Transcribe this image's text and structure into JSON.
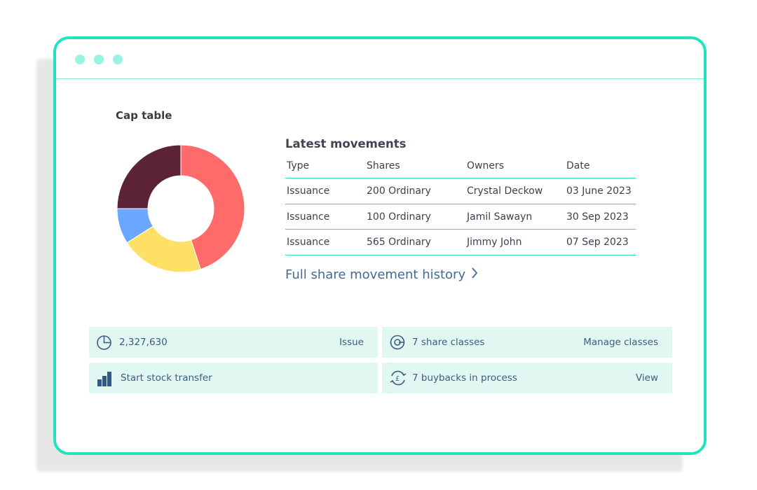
{
  "window": {
    "dots": [
      "",
      "",
      ""
    ]
  },
  "cap_table": {
    "title": "Cap table",
    "chart_data": {
      "type": "pie",
      "categories": [
        "Red segment",
        "Yellow segment",
        "Blue segment",
        "Dark segment"
      ],
      "values": [
        45,
        21,
        9,
        25
      ],
      "colors": [
        "#ff6b6b",
        "#ffe066",
        "#6aa8ff",
        "#5c2235"
      ],
      "title": "Cap table"
    }
  },
  "movements": {
    "title": "Latest movements",
    "columns": [
      "Type",
      "Shares",
      "Owners",
      "Date"
    ],
    "rows": [
      [
        "Issuance",
        "200 Ordinary",
        "Crystal Deckow",
        "03 June 2023"
      ],
      [
        "Issuance",
        "100 Ordinary",
        "Jamil Sawayn",
        "30 Sep 2023"
      ],
      [
        "Issuance",
        "565 Ordinary",
        "Jimmy John",
        "07 Sep 2023"
      ]
    ],
    "history_link": "Full share movement history"
  },
  "tiles": {
    "shares": {
      "icon": "pie-chart-icon",
      "label": "2,327,630",
      "action": "Issue"
    },
    "classes": {
      "icon": "share-classes-icon",
      "label": "7 share classes",
      "action": "Manage classes"
    },
    "transfer": {
      "icon": "bar-chart-icon",
      "label": "Start stock transfer"
    },
    "buybacks": {
      "icon": "pound-cycle-icon",
      "label": "7 buybacks in process",
      "action": "View"
    }
  },
  "colors": {
    "accent": "#22e3c0",
    "tile_bg": "#e0f7f2",
    "link": "#456a8f"
  }
}
